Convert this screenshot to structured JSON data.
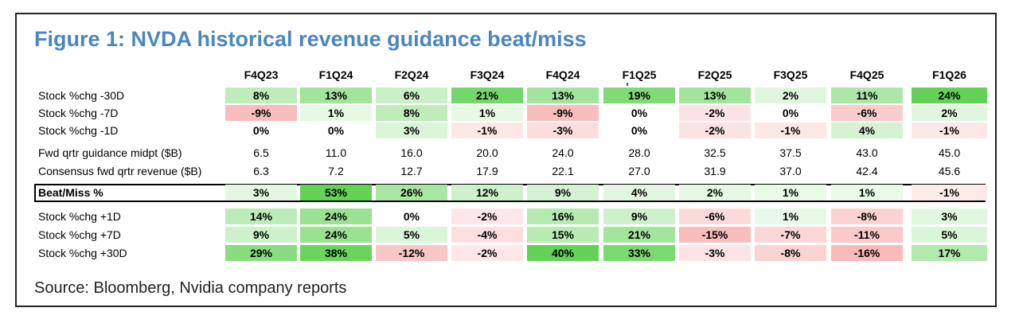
{
  "figure": {
    "title": "Figure 1: NVDA historical revenue guidance beat/miss",
    "source": "Source: Bloomberg, Nvidia company reports"
  },
  "columns": [
    "F4Q23",
    "F1Q24",
    "F2Q24",
    "F3Q24",
    "F4Q24",
    "F1Q25",
    "F2Q25",
    "F3Q25",
    "F4Q25",
    "F1Q26"
  ],
  "rows": [
    {
      "label": "Stock %chg -30D",
      "style": "heat",
      "values": [
        "8%",
        "13%",
        "6%",
        "21%",
        "13%",
        "19%",
        "13%",
        "2%",
        "11%",
        "24%"
      ],
      "numbers": [
        8,
        13,
        6,
        21,
        13,
        19,
        13,
        2,
        11,
        24
      ]
    },
    {
      "label": "Stock %chg -7D",
      "style": "heat",
      "values": [
        "-9%",
        "1%",
        "8%",
        "1%",
        "-9%",
        "0%",
        "-2%",
        "0%",
        "-6%",
        "2%"
      ],
      "numbers": [
        -9,
        1,
        8,
        1,
        -9,
        0,
        -2,
        0,
        -6,
        2
      ]
    },
    {
      "label": "Stock %chg -1D",
      "style": "heat",
      "values": [
        "0%",
        "0%",
        "3%",
        "-1%",
        "-3%",
        "0%",
        "-2%",
        "-1%",
        "4%",
        "-1%"
      ],
      "numbers": [
        0,
        0,
        3,
        -1,
        -3,
        0,
        -2,
        -1,
        4,
        -1
      ]
    },
    {
      "label": "Fwd qrtr guidance midpt ($B)",
      "style": "plain",
      "values": [
        "6.5",
        "11.0",
        "16.0",
        "20.0",
        "24.0",
        "28.0",
        "32.5",
        "37.5",
        "43.0",
        "45.0"
      ]
    },
    {
      "label": "Consensus fwd qrtr revenue ($B)",
      "style": "plain",
      "values": [
        "6.3",
        "7.2",
        "12.7",
        "17.9",
        "22.1",
        "27.0",
        "31.9",
        "37.0",
        "42.4",
        "45.6"
      ]
    },
    {
      "label": "Beat/Miss %",
      "style": "beat",
      "values": [
        "3%",
        "53%",
        "26%",
        "12%",
        "9%",
        "4%",
        "2%",
        "1%",
        "1%",
        "-1%"
      ],
      "numbers": [
        3,
        53,
        26,
        12,
        9,
        4,
        2,
        1,
        1,
        -1
      ]
    },
    {
      "label": "Stock %chg +1D",
      "style": "heat",
      "values": [
        "14%",
        "24%",
        "0%",
        "-2%",
        "16%",
        "9%",
        "-6%",
        "1%",
        "-8%",
        "3%"
      ],
      "numbers": [
        14,
        24,
        0,
        -2,
        16,
        9,
        -6,
        1,
        -8,
        3
      ]
    },
    {
      "label": "Stock %chg +7D",
      "style": "heat",
      "values": [
        "9%",
        "24%",
        "5%",
        "-4%",
        "15%",
        "21%",
        "-15%",
        "-7%",
        "-11%",
        "5%"
      ],
      "numbers": [
        9,
        24,
        5,
        -4,
        15,
        21,
        -15,
        -7,
        -11,
        5
      ]
    },
    {
      "label": "Stock %chg +30D",
      "style": "heat",
      "values": [
        "29%",
        "38%",
        "-12%",
        "-2%",
        "40%",
        "33%",
        "-3%",
        "-8%",
        "-16%",
        "17%"
      ],
      "numbers": [
        29,
        38,
        -12,
        -2,
        40,
        33,
        -3,
        -8,
        -16,
        17
      ]
    }
  ],
  "colors": {
    "positive_strong": "#63d257",
    "positive_light": "#eafbe6",
    "negative_strong": "#f06c6c",
    "negative_light": "#fdeaea",
    "title": "#4a86c0"
  }
}
